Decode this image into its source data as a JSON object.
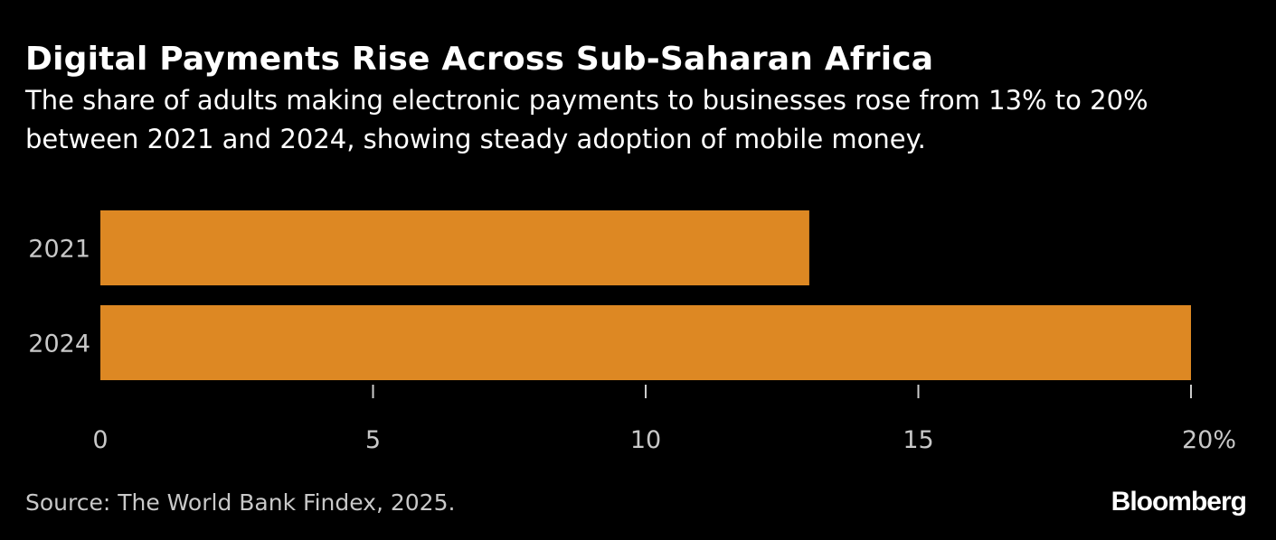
{
  "header": {
    "title": "Digital Payments Rise Across Sub-Saharan Africa",
    "subtitle": "The share of adults making electronic payments to businesses rose from 13% to 20% between 2021 and 2024, showing steady adoption of mobile money."
  },
  "footer": {
    "source": "Source: The World Bank Findex, 2025.",
    "logo_text": "Bloomberg"
  },
  "colors": {
    "background": "#000000",
    "bar": "#dd8823",
    "text": "#ffffff",
    "muted_text": "#c8c8c8",
    "tick": "#cccccc"
  },
  "chart_data": {
    "type": "bar",
    "orientation": "horizontal",
    "categories": [
      "2021",
      "2024"
    ],
    "values": [
      13,
      20
    ],
    "xlim": [
      0,
      20
    ],
    "x_ticks": [
      0,
      5,
      10,
      15,
      20
    ],
    "x_tick_labels": [
      "0",
      "5",
      "10",
      "15",
      "20%"
    ],
    "title": "Digital Payments Rise Across Sub-Saharan Africa",
    "xlabel": "",
    "ylabel": "",
    "grid": false,
    "legend": "none"
  }
}
